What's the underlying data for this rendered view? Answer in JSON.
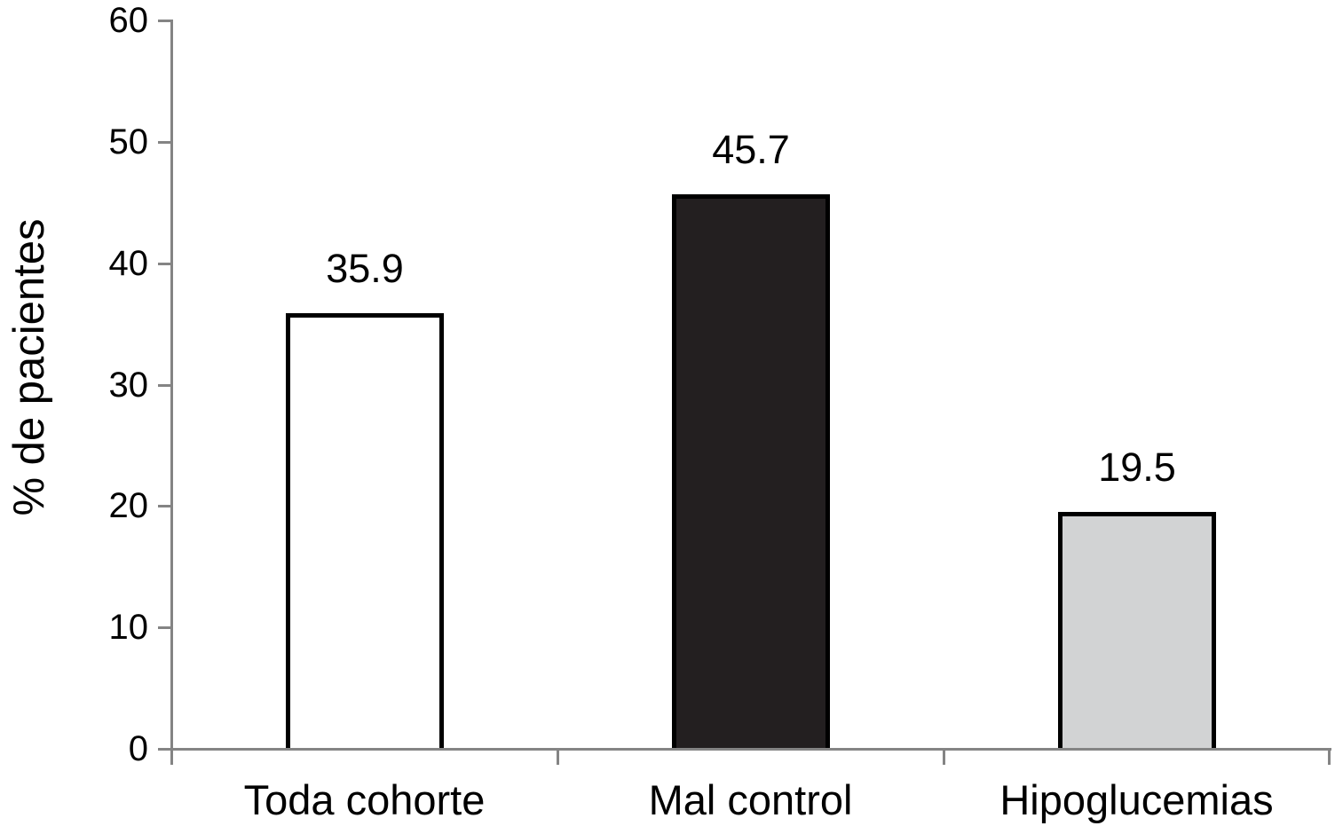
{
  "chart_data": {
    "type": "bar",
    "title": "",
    "xlabel": "",
    "ylabel": "% de pacientes",
    "categories": [
      "Toda cohorte",
      "Mal control",
      "Hipoglucemias"
    ],
    "values": [
      35.9,
      45.7,
      19.5
    ],
    "value_labels": [
      "35.9",
      "45.7",
      "19.5"
    ],
    "ylim": [
      0,
      60
    ],
    "yticks": [
      0,
      10,
      20,
      30,
      40,
      50,
      60
    ],
    "ytick_labels": [
      "0",
      "10",
      "20",
      "30",
      "40",
      "50",
      "60"
    ],
    "grid": false,
    "legend": null,
    "legend_position": "none",
    "bar_style": {
      "fills": [
        "#ffffff",
        "#231f20",
        "#d2d3d4"
      ],
      "border_color": "#000000",
      "border_width_px": 5
    },
    "axis_color": "#848484",
    "text_color": "#000000",
    "background_color": "#ffffff"
  }
}
